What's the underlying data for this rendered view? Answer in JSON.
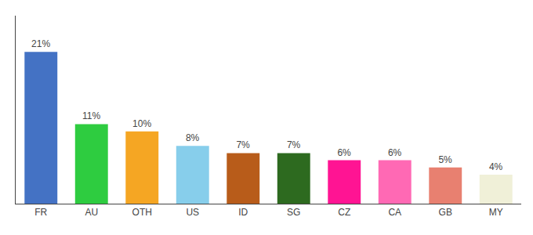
{
  "chart_data": {
    "type": "bar",
    "categories": [
      "FR",
      "AU",
      "OTH",
      "US",
      "ID",
      "SG",
      "CZ",
      "CA",
      "GB",
      "MY"
    ],
    "values": [
      21,
      11,
      10,
      8,
      7,
      7,
      6,
      6,
      5,
      4
    ],
    "value_labels": [
      "21%",
      "11%",
      "10%",
      "8%",
      "7%",
      "7%",
      "6%",
      "6%",
      "5%",
      "4%"
    ],
    "colors": [
      "#4472c4",
      "#2ecc40",
      "#f5a623",
      "#87ceeb",
      "#b85c1a",
      "#2d6a1f",
      "#ff1493",
      "#ff69b4",
      "#e88070",
      "#f0f0d8"
    ],
    "ylim": [
      0,
      26
    ],
    "data_labels": true,
    "tick_labels": "x",
    "grid": false
  }
}
